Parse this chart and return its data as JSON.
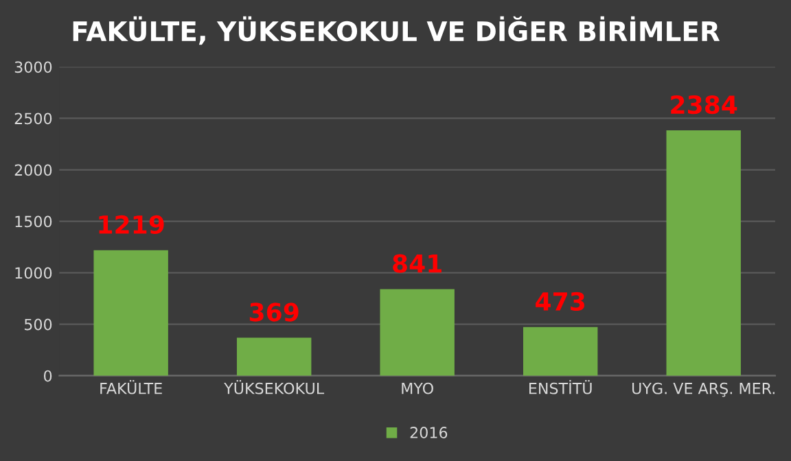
{
  "chart_data": {
    "type": "bar",
    "title": "FAKÜLTE, YÜKSEKOKUL VE DİĞER BİRİMLER",
    "categories": [
      "FAKÜLTE",
      "YÜKSEKOKUL",
      "MYO",
      "ENSTİTÜ",
      "UYG. VE ARŞ. MER."
    ],
    "series": [
      {
        "name": "2016",
        "color": "#70ad47",
        "values": [
          1219,
          369,
          841,
          473,
          2384
        ]
      }
    ],
    "ylim": [
      0,
      3000
    ],
    "yticks": [
      0,
      500,
      1000,
      1500,
      2000,
      2500,
      3000
    ],
    "grid": "y",
    "legend": "bottom",
    "data_labels": true
  }
}
